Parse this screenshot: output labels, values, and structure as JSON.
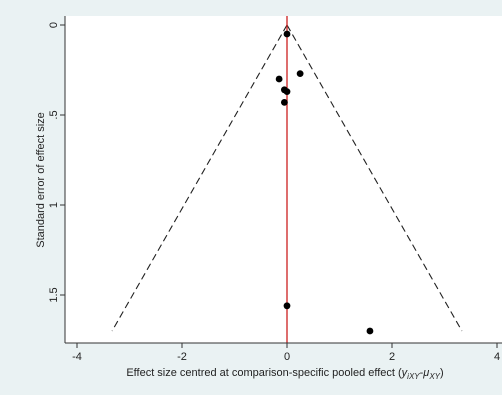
{
  "chart_data": {
    "type": "scatter",
    "title": "",
    "xlabel_main": "Effect size centred at comparison-specific pooled effect (",
    "xlabel_math": "y",
    "xlabel_sub1": "iXY",
    "xlabel_dash": "-",
    "xlabel_mu": "μ",
    "xlabel_sub2": "XY",
    "xlabel_end": ")",
    "ylabel": "Standard error of effect size",
    "xlim": [
      -4,
      4
    ],
    "ylim": [
      0,
      1.72
    ],
    "y_reversed": true,
    "x_ticks": [
      -4,
      -2,
      0,
      2,
      4
    ],
    "x_tick_labels": [
      "-4",
      "-2",
      "0",
      "2",
      "4"
    ],
    "y_ticks": [
      0,
      0.5,
      1,
      1.5
    ],
    "y_tick_labels": [
      "0",
      ".5",
      "1",
      "1.5"
    ],
    "points": [
      {
        "x": 0.0,
        "y": 0.05
      },
      {
        "x": 0.25,
        "y": 0.27
      },
      {
        "x": -0.15,
        "y": 0.3
      },
      {
        "x": -0.05,
        "y": 0.36
      },
      {
        "x": 0.0,
        "y": 0.37
      },
      {
        "x": -0.05,
        "y": 0.43
      },
      {
        "x": 0.0,
        "y": 1.56
      },
      {
        "x": 1.58,
        "y": 1.7
      }
    ],
    "null_line_x": 0,
    "funnel_bottom_se": 1.7,
    "funnel_multiplier": 1.96,
    "colors": {
      "outer_background": "#eaf2f3",
      "plot_background": "#ffffff",
      "points": "#000000",
      "null_line": "#cc1f1f",
      "funnel": "#222222"
    }
  }
}
